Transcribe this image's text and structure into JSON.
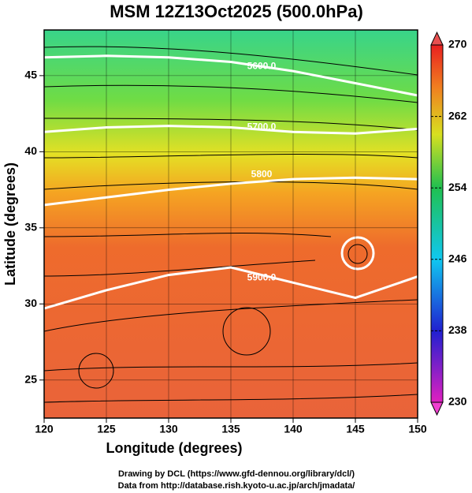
{
  "chart_data": {
    "type": "contour-map",
    "title": "MSM 12Z13Oct2025 (500.0hPa)",
    "x_label": "Longitude (degrees)",
    "y_label": "Latitude  (degrees)",
    "xlim": [
      120,
      150
    ],
    "ylim": [
      22.5,
      48
    ],
    "xticks": [
      120,
      125,
      130,
      135,
      140,
      145,
      150
    ],
    "yticks": [
      25,
      30,
      35,
      40,
      45
    ],
    "grid": true,
    "colorbar": {
      "lim": [
        230,
        270
      ],
      "ticks": [
        230,
        238,
        246,
        254,
        262,
        270
      ]
    },
    "contours": [
      {
        "level": 5600,
        "label": "5600.0",
        "x": [
          120,
          125,
          130,
          135,
          140,
          145,
          150
        ],
        "y": [
          46.2,
          46.3,
          46.2,
          45.9,
          45.3,
          44.5,
          43.7
        ]
      },
      {
        "level": 5700,
        "label": "5700.0",
        "x": [
          120,
          125,
          130,
          135,
          140,
          145,
          150
        ],
        "y": [
          41.3,
          41.6,
          41.7,
          41.6,
          41.3,
          41.2,
          41.5
        ]
      },
      {
        "level": 5800,
        "label": "5800",
        "x": [
          120,
          125,
          130,
          135,
          140,
          145,
          150
        ],
        "y": [
          36.5,
          37.0,
          37.5,
          37.9,
          38.2,
          38.3,
          38.2
        ]
      },
      {
        "level": 5900,
        "label": "5900.0",
        "x": [
          120,
          125,
          130,
          135,
          140,
          145,
          150
        ],
        "y": [
          29.7,
          30.9,
          31.9,
          32.4,
          31.4,
          30.4,
          31.8
        ]
      }
    ],
    "footer": [
      "Drawing by DCL (https://www.gfd-dennou.org/library/dcl/)",
      "Data from http://database.rish.kyoto-u.ac.jp/arch/jmadata/"
    ]
  }
}
